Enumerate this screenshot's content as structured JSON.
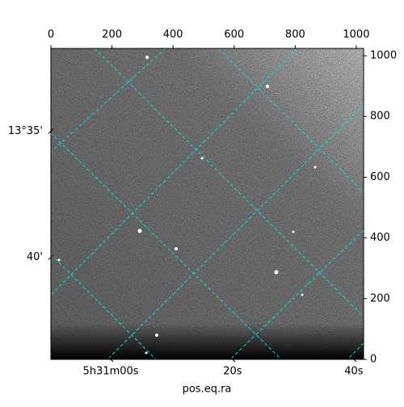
{
  "chart_data": {
    "type": "image",
    "xlabel": "pos.eq.ra",
    "xlim": [
      0,
      1024
    ],
    "ylim": [
      0,
      1024
    ],
    "xticks": [
      0,
      200,
      400,
      600,
      800,
      1000
    ],
    "yticks": [
      0,
      200,
      400,
      600,
      800,
      1000
    ],
    "ra_ticks": [
      {
        "value": 196,
        "label": "5h31m00s"
      },
      {
        "value": 595,
        "label": "20s"
      },
      {
        "value": 992,
        "label": "40s"
      }
    ],
    "dec_ticks": [
      {
        "value": 752,
        "label": "13°35'"
      },
      {
        "value": 336,
        "label": "40'"
      }
    ],
    "grid": true,
    "grid_color": "#00e0e0"
  }
}
